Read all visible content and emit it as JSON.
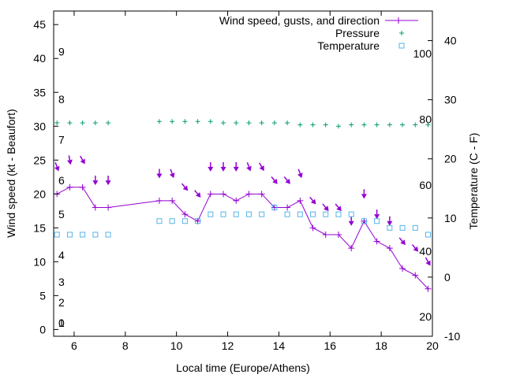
{
  "chart_data": {
    "type": "line",
    "xlabel": "Local time (Europe/Athens)",
    "ylabel": "Wind speed (kt - Beaufort)",
    "y2label": "Temperature (C - F)",
    "xlim": [
      5.2,
      20
    ],
    "ylim": [
      -1,
      47
    ],
    "y2lim": [
      -10,
      45
    ],
    "x_ticks": [
      6,
      8,
      10,
      12,
      14,
      16,
      18,
      20
    ],
    "y_ticks": [
      0,
      5,
      10,
      15,
      20,
      25,
      30,
      35,
      40,
      45
    ],
    "y2_ticks": [
      -10,
      0,
      10,
      20,
      30,
      40
    ],
    "beaufort_labels": [
      {
        "label": "0",
        "y": 1
      },
      {
        "label": "1",
        "y": 1
      },
      {
        "label": "2",
        "y": 4
      },
      {
        "label": "3",
        "y": 7
      },
      {
        "label": "4",
        "y": 11
      },
      {
        "label": "5",
        "y": 17
      },
      {
        "label": "6",
        "y": 22
      },
      {
        "label": "7",
        "y": 28
      },
      {
        "label": "8",
        "y": 34
      },
      {
        "label": "9",
        "y": 41
      }
    ],
    "fahrenheit_labels": [
      {
        "label": "20",
        "temp_c": -6.7
      },
      {
        "label": "40",
        "temp_c": 4.4
      },
      {
        "label": "60",
        "temp_c": 15.6
      },
      {
        "label": "80",
        "temp_c": 26.7
      },
      {
        "label": "100",
        "temp_c": 37.8
      }
    ],
    "legend": {
      "position": "top-right",
      "entries": [
        "Wind speed, gusts, and direction",
        "Pressure",
        "Temperature"
      ]
    },
    "colors": {
      "wind": "#9400d3",
      "pressure": "#009e73",
      "temperature": "#56b4e9"
    },
    "series": [
      {
        "name": "Wind speed, gusts, and direction",
        "x": [
          5.33,
          5.83,
          6.33,
          6.83,
          7.33,
          9.33,
          9.83,
          10.33,
          10.83,
          11.33,
          11.83,
          12.33,
          12.83,
          13.33,
          13.83,
          14.33,
          14.83,
          15.33,
          15.83,
          16.33,
          16.83,
          17.33,
          17.83,
          18.33,
          18.83,
          19.33,
          19.83
        ],
        "values": [
          20,
          21,
          21,
          18,
          18,
          19,
          19,
          17,
          16,
          20,
          20,
          19,
          20,
          20,
          18,
          18,
          19,
          15,
          14,
          14,
          12,
          16,
          13,
          12,
          9,
          8,
          6
        ]
      },
      {
        "name": "Gusts",
        "x": [
          5.33,
          5.83,
          6.33,
          6.83,
          7.33,
          9.33,
          9.83,
          10.33,
          10.83,
          11.33,
          11.83,
          12.33,
          12.83,
          13.33,
          13.83,
          14.33,
          14.83,
          15.33,
          15.83,
          16.33,
          16.83,
          17.33,
          17.83,
          18.33,
          18.83,
          19.33,
          19.83
        ],
        "values": [
          24,
          25,
          25,
          22,
          22,
          23,
          23,
          21,
          20,
          24,
          24,
          24,
          24,
          24,
          22,
          22,
          23,
          19,
          18,
          18,
          16,
          20,
          17,
          16,
          13,
          12,
          10
        ],
        "direction_deg": [
          340,
          350,
          330,
          0,
          0,
          0,
          340,
          320,
          320,
          0,
          0,
          0,
          340,
          330,
          320,
          320,
          340,
          320,
          320,
          320,
          0,
          0,
          0,
          0,
          320,
          320,
          330
        ]
      },
      {
        "name": "Pressure",
        "x": [
          5.33,
          5.83,
          6.33,
          6.83,
          7.33,
          9.33,
          9.83,
          10.33,
          10.83,
          11.33,
          11.83,
          12.33,
          12.83,
          13.33,
          13.83,
          14.33,
          14.83,
          15.33,
          15.83,
          16.33,
          16.83,
          17.33,
          17.83,
          18.33,
          18.83,
          19.33,
          19.83
        ],
        "values": [
          30.5,
          30.5,
          30.5,
          30.5,
          30.5,
          30.7,
          30.7,
          30.7,
          30.7,
          30.7,
          30.5,
          30.5,
          30.5,
          30.5,
          30.5,
          30.5,
          30.2,
          30.2,
          30.2,
          30.0,
          30.2,
          30.2,
          30.2,
          30.2,
          30.2,
          30.2,
          30.2
        ]
      },
      {
        "name": "Temperature",
        "x": [
          5.33,
          5.83,
          6.33,
          6.83,
          7.33,
          9.33,
          9.83,
          10.33,
          10.83,
          11.33,
          11.83,
          12.33,
          12.83,
          13.33,
          13.83,
          14.33,
          14.83,
          15.33,
          15.83,
          16.33,
          16.83,
          17.33,
          17.83,
          18.33,
          18.83,
          19.33,
          19.83
        ],
        "values": [
          14,
          14,
          14,
          14,
          14,
          16,
          16,
          16,
          16,
          17,
          17,
          17,
          17,
          17,
          18,
          17,
          17,
          17,
          17,
          17,
          17,
          16,
          16,
          15,
          15,
          15,
          14
        ]
      }
    ]
  }
}
